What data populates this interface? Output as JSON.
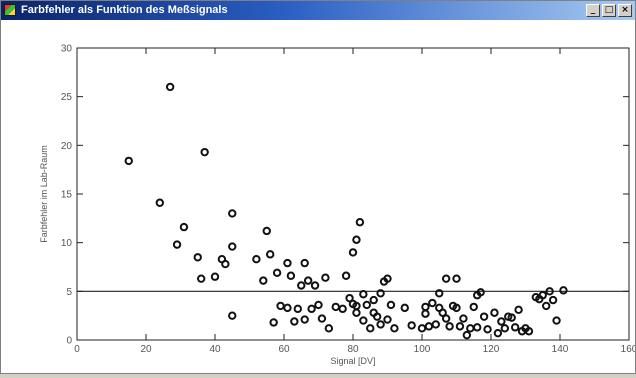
{
  "window": {
    "title": "Farbfehler als Funktion des Meßsignals",
    "icon": "app-icon",
    "buttons": [
      {
        "name": "minimize-button",
        "glyph": "_"
      },
      {
        "name": "maximize-button",
        "glyph": "□"
      },
      {
        "name": "close-button",
        "glyph": "×"
      }
    ]
  },
  "chart_data": {
    "type": "scatter",
    "title": "",
    "xlabel": "Signal [DV]",
    "ylabel": "Farbfehler im Lab-Raum",
    "xlim": [
      0,
      160
    ],
    "ylim": [
      0,
      30
    ],
    "x_ticks": [
      0,
      20,
      40,
      60,
      80,
      100,
      120,
      140,
      160
    ],
    "y_ticks": [
      0,
      5,
      10,
      15,
      20,
      25,
      30
    ],
    "grid": false,
    "reference_line": {
      "y": 5
    },
    "marker_color": "#111111",
    "points": [
      [
        15,
        18.4
      ],
      [
        24,
        14.1
      ],
      [
        27,
        26
      ],
      [
        29,
        9.8
      ],
      [
        31,
        11.6
      ],
      [
        35,
        8.5
      ],
      [
        36,
        6.3
      ],
      [
        37,
        19.3
      ],
      [
        40,
        6.5
      ],
      [
        42,
        8.3
      ],
      [
        43,
        7.8
      ],
      [
        45,
        13
      ],
      [
        45,
        9.6
      ],
      [
        45,
        2.5
      ],
      [
        52,
        8.3
      ],
      [
        54,
        6.1
      ],
      [
        55,
        11.2
      ],
      [
        56,
        8.8
      ],
      [
        57,
        1.8
      ],
      [
        58,
        6.9
      ],
      [
        59,
        3.5
      ],
      [
        61,
        7.9
      ],
      [
        61,
        3.3
      ],
      [
        62,
        6.6
      ],
      [
        63,
        1.9
      ],
      [
        64,
        3.2
      ],
      [
        65,
        5.6
      ],
      [
        66,
        7.9
      ],
      [
        66,
        2.1
      ],
      [
        67,
        6.1
      ],
      [
        68,
        3.2
      ],
      [
        69,
        5.6
      ],
      [
        70,
        3.6
      ],
      [
        71,
        2.2
      ],
      [
        72,
        6.4
      ],
      [
        73,
        1.2
      ],
      [
        75,
        3.4
      ],
      [
        77,
        3.2
      ],
      [
        78,
        6.6
      ],
      [
        79,
        4.3
      ],
      [
        80,
        9
      ],
      [
        80,
        3.7
      ],
      [
        81,
        3.5
      ],
      [
        81,
        2.8
      ],
      [
        81,
        10.3
      ],
      [
        82,
        12.1
      ],
      [
        83,
        4.7
      ],
      [
        83,
        2
      ],
      [
        84,
        3.6
      ],
      [
        85,
        1.2
      ],
      [
        86,
        4.1
      ],
      [
        86,
        2.8
      ],
      [
        87,
        2.4
      ],
      [
        88,
        1.6
      ],
      [
        88,
        4.8
      ],
      [
        89,
        6
      ],
      [
        90,
        6.3
      ],
      [
        90,
        2.1
      ],
      [
        91,
        3.6
      ],
      [
        92,
        1.2
      ],
      [
        95,
        3.3
      ],
      [
        97,
        1.5
      ],
      [
        100,
        1.2
      ],
      [
        101,
        3.4
      ],
      [
        101,
        2.7
      ],
      [
        102,
        1.4
      ],
      [
        103,
        3.8
      ],
      [
        104,
        1.6
      ],
      [
        105,
        4.8
      ],
      [
        105,
        3.3
      ],
      [
        106,
        2.8
      ],
      [
        107,
        6.3
      ],
      [
        107,
        2.2
      ],
      [
        108,
        1.4
      ],
      [
        109,
        3.5
      ],
      [
        110,
        3.3
      ],
      [
        110,
        6.3
      ],
      [
        111,
        1.4
      ],
      [
        112,
        2.2
      ],
      [
        113,
        0.5
      ],
      [
        114,
        1.2
      ],
      [
        115,
        3.4
      ],
      [
        116,
        4.6
      ],
      [
        116,
        1.3
      ],
      [
        117,
        4.9
      ],
      [
        118,
        2.4
      ],
      [
        119,
        1.1
      ],
      [
        121,
        2.8
      ],
      [
        122,
        0.7
      ],
      [
        123,
        1.9
      ],
      [
        124,
        1.2
      ],
      [
        125,
        2.4
      ],
      [
        126,
        2.3
      ],
      [
        127,
        1.3
      ],
      [
        128,
        3.1
      ],
      [
        129,
        0.9
      ],
      [
        130,
        1.2
      ],
      [
        131,
        0.9
      ],
      [
        133,
        4.4
      ],
      [
        134,
        4.2
      ],
      [
        135,
        4.6
      ],
      [
        136,
        3.5
      ],
      [
        137,
        5
      ],
      [
        138,
        4.1
      ],
      [
        139,
        2
      ],
      [
        141,
        5.1
      ]
    ]
  }
}
